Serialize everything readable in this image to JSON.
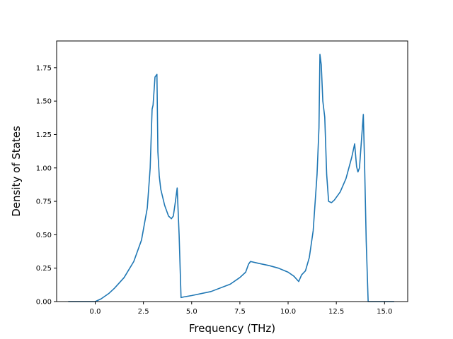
{
  "chart_data": {
    "type": "line",
    "title": "",
    "xlabel": "Frequency (THz)",
    "ylabel": "Density of States",
    "xlim": [
      -2.0,
      16.2
    ],
    "ylim": [
      0.0,
      1.95
    ],
    "xticks": [
      0.0,
      2.5,
      5.0,
      7.5,
      10.0,
      12.5,
      15.0
    ],
    "xtick_labels": [
      "0.0",
      "2.5",
      "5.0",
      "7.5",
      "10.0",
      "12.5",
      "15.0"
    ],
    "yticks": [
      0.0,
      0.25,
      0.5,
      0.75,
      1.0,
      1.25,
      1.5,
      1.75
    ],
    "ytick_labels": [
      "0.00",
      "0.25",
      "0.50",
      "0.75",
      "1.00",
      "1.25",
      "1.50",
      "1.75"
    ],
    "grid": false,
    "series": [
      {
        "color": "#1f77b4",
        "x": [
          -1.4,
          0.0,
          0.3,
          0.7,
          1.0,
          1.5,
          2.0,
          2.4,
          2.7,
          2.85,
          2.95,
          3.0,
          3.1,
          3.2,
          3.25,
          3.32,
          3.4,
          3.6,
          3.8,
          3.95,
          4.05,
          4.15,
          4.25,
          4.35,
          4.45,
          4.6,
          5.0,
          6.0,
          7.0,
          7.5,
          7.8,
          7.95,
          8.05,
          8.5,
          9.0,
          9.5,
          10.0,
          10.3,
          10.55,
          10.7,
          10.9,
          11.1,
          11.3,
          11.5,
          11.6,
          11.65,
          11.72,
          11.8,
          11.9,
          12.0,
          12.1,
          12.25,
          12.4,
          12.7,
          13.0,
          13.3,
          13.45,
          13.55,
          13.62,
          13.7,
          13.8,
          13.9,
          13.96,
          14.05,
          14.15,
          14.4,
          15.5
        ],
        "y": [
          0.0,
          0.0,
          0.02,
          0.06,
          0.1,
          0.18,
          0.3,
          0.46,
          0.7,
          1.0,
          1.44,
          1.47,
          1.68,
          1.7,
          1.12,
          0.94,
          0.84,
          0.72,
          0.64,
          0.62,
          0.64,
          0.74,
          0.85,
          0.5,
          0.03,
          0.035,
          0.045,
          0.075,
          0.13,
          0.18,
          0.22,
          0.28,
          0.3,
          0.285,
          0.27,
          0.25,
          0.22,
          0.19,
          0.15,
          0.2,
          0.23,
          0.33,
          0.53,
          0.95,
          1.3,
          1.85,
          1.77,
          1.5,
          1.38,
          0.95,
          0.75,
          0.74,
          0.76,
          0.82,
          0.92,
          1.08,
          1.18,
          1.01,
          0.97,
          1.0,
          1.2,
          1.4,
          1.06,
          0.45,
          0.0,
          0.0,
          0.0
        ]
      }
    ]
  }
}
